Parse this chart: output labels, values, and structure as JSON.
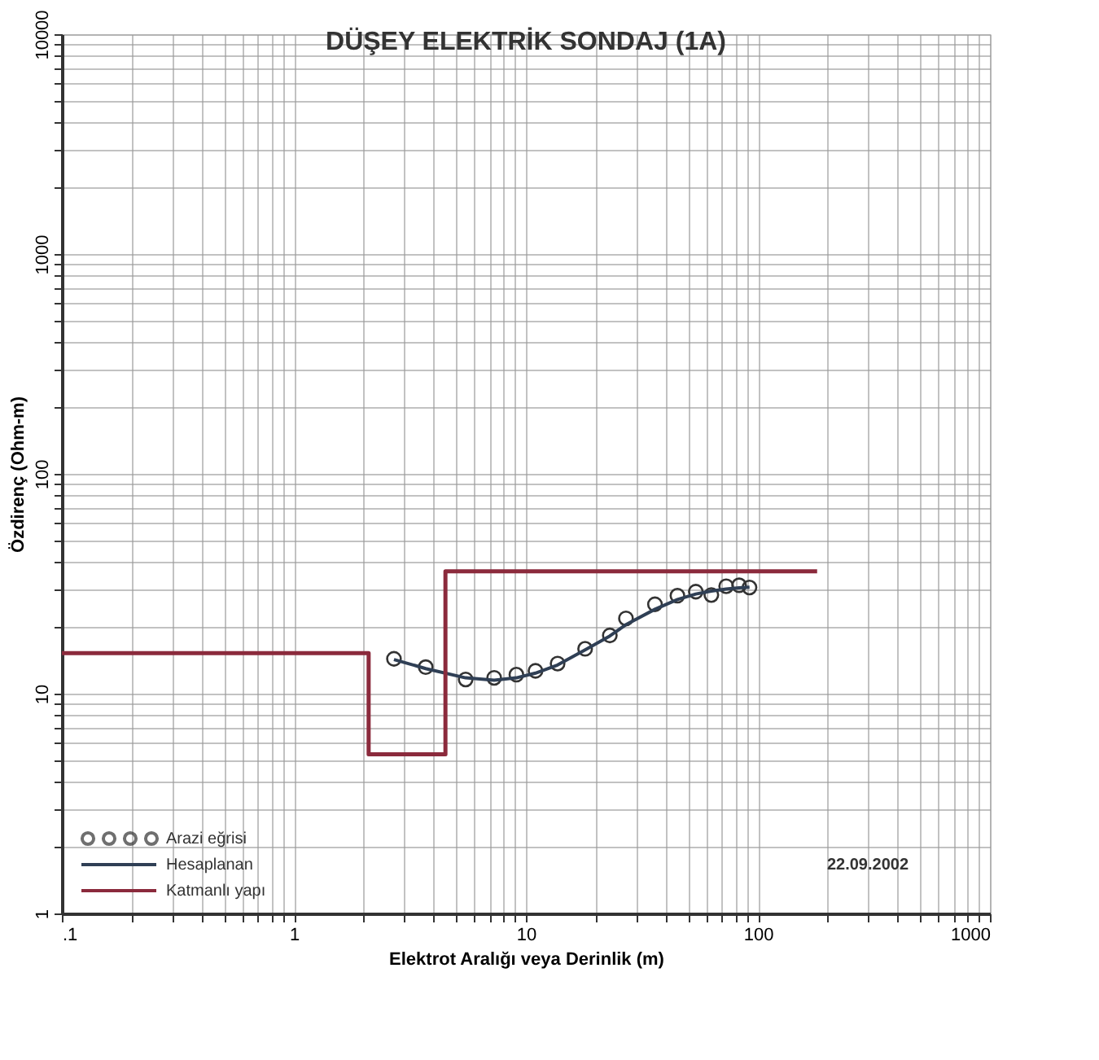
{
  "chart_data": {
    "type": "line",
    "title": "DÜŞEY ELEKTRİK SONDAJ (1A)",
    "xlabel": "Elektrot Aralığı veya Derinlik (m)",
    "ylabel": "Özdirenç (Ohm-m)",
    "log": "xy",
    "grid": true,
    "legend": "bottom left",
    "xlim": [
      0.1,
      1000
    ],
    "ylim": [
      1,
      10000
    ],
    "xticks": [
      {
        "value": 0.1,
        "label": ".1"
      },
      1,
      10,
      100,
      1000,
      {
        "value": 0.2,
        "label": null
      },
      {
        "value": 0.3,
        "label": null
      },
      {
        "value": 0.4,
        "label": null
      },
      {
        "value": 0.5,
        "label": null
      },
      {
        "value": 0.6,
        "label": null
      },
      {
        "value": 0.7,
        "label": null
      },
      {
        "value": 0.8,
        "label": null
      },
      {
        "value": 0.9,
        "label": null
      },
      {
        "value": 2,
        "label": null
      },
      {
        "value": 3,
        "label": null
      },
      {
        "value": 4,
        "label": null
      },
      {
        "value": 5,
        "label": null
      },
      {
        "value": 6,
        "label": null
      },
      {
        "value": 7,
        "label": null
      },
      {
        "value": 8,
        "label": null
      },
      {
        "value": 9,
        "label": null
      },
      {
        "value": 20,
        "label": null
      },
      {
        "value": 30,
        "label": null
      },
      {
        "value": 40,
        "label": null
      },
      {
        "value": 50,
        "label": null
      },
      {
        "value": 60,
        "label": null
      },
      {
        "value": 70,
        "label": null
      },
      {
        "value": 80,
        "label": null
      },
      {
        "value": 90,
        "label": null
      },
      {
        "value": 200,
        "label": null
      },
      {
        "value": 300,
        "label": null
      },
      {
        "value": 400,
        "label": null
      },
      {
        "value": 500,
        "label": null
      },
      {
        "value": 600,
        "label": null
      },
      {
        "value": 700,
        "label": null
      },
      {
        "value": 800,
        "label": null
      },
      {
        "value": 900,
        "label": null
      }
    ],
    "yticks": [
      1,
      10,
      100,
      1000,
      10000,
      {
        "value": 2,
        "label": null
      },
      {
        "value": 3,
        "label": null
      },
      {
        "value": 4,
        "label": null
      },
      {
        "value": 5,
        "label": null
      },
      {
        "value": 6,
        "label": null
      },
      {
        "value": 7,
        "label": null
      },
      {
        "value": 8,
        "label": null
      },
      {
        "value": 9,
        "label": null
      },
      {
        "value": 20,
        "label": null
      },
      {
        "value": 30,
        "label": null
      },
      {
        "value": 40,
        "label": null
      },
      {
        "value": 50,
        "label": null
      },
      {
        "value": 60,
        "label": null
      },
      {
        "value": 70,
        "label": null
      },
      {
        "value": 80,
        "label": null
      },
      {
        "value": 90,
        "label": null
      },
      {
        "value": 200,
        "label": null
      },
      {
        "value": 300,
        "label": null
      },
      {
        "value": 400,
        "label": null
      },
      {
        "value": 500,
        "label": null
      },
      {
        "value": 600,
        "label": null
      },
      {
        "value": 700,
        "label": null
      },
      {
        "value": 800,
        "label": null
      },
      {
        "value": 900,
        "label": null
      },
      {
        "value": 2000,
        "label": null
      },
      {
        "value": 3000,
        "label": null
      },
      {
        "value": 4000,
        "label": null
      },
      {
        "value": 5000,
        "label": null
      },
      {
        "value": 6000,
        "label": null
      },
      {
        "value": 7000,
        "label": null
      },
      {
        "value": 8000,
        "label": null
      },
      {
        "value": 9000,
        "label": null
      }
    ],
    "series": [
      {
        "name": "Arazi eğrisi",
        "type": "scatter",
        "marker": "circle",
        "color": "#333333",
        "x": [
          2.7,
          3.7,
          5.5,
          7.3,
          9.1,
          11,
          13.7,
          18,
          23,
          27,
          36,
          45,
          54,
          63,
          73,
          83,
          92
        ],
        "values": [
          14.4,
          13.2,
          11.6,
          11.8,
          12.2,
          12.7,
          13.7,
          16,
          18.4,
          22,
          25.5,
          27.9,
          29.1,
          28.1,
          30.8,
          31.1,
          30.4
        ]
      },
      {
        "name": "Hesaplanan",
        "line_style": "solid",
        "color": "#2f3f55",
        "x": [
          2.7,
          3.7,
          5.5,
          7.3,
          9.1,
          11,
          13.7,
          18,
          23,
          27,
          36,
          45,
          54,
          63,
          73,
          83,
          92
        ],
        "values": [
          14.3,
          13,
          11.8,
          11.5,
          11.8,
          12.4,
          13.5,
          15.8,
          18.3,
          20.6,
          24.2,
          26.8,
          28.4,
          29.3,
          29.9,
          30.3,
          30.5
        ]
      },
      {
        "name": "Katmanlı yapı",
        "type": "step",
        "line_style": "solid",
        "color": "#8b2a3c",
        "x": [
          0.1,
          2.1,
          4.5,
          180
        ],
        "values": [
          15.3,
          5.3,
          36,
          36
        ]
      }
    ],
    "annotations": [
      "22.09.2002"
    ]
  }
}
